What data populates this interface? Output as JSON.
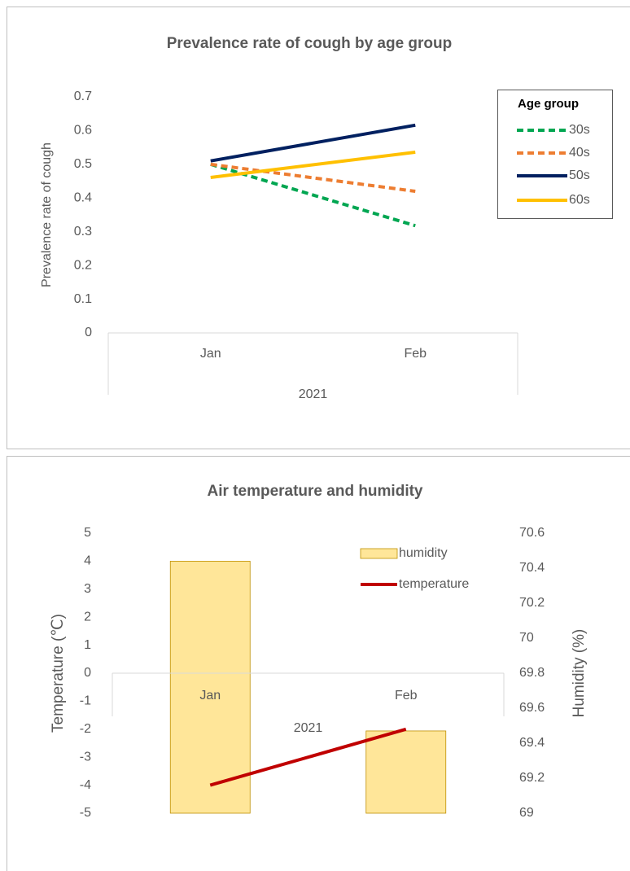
{
  "chart_data": [
    {
      "type": "line",
      "title": "Prevalence rate of cough by age group",
      "y_label": "Prevalence rate of cough",
      "categories": [
        "Jan",
        "Feb"
      ],
      "x_group_label": "2021",
      "ylim": [
        0,
        0.7
      ],
      "yticks": [
        0,
        0.1,
        0.2,
        0.3,
        0.4,
        0.5,
        0.6,
        0.7
      ],
      "legend_title": "Age group",
      "legend": "upper right",
      "series": [
        {
          "name": "30s",
          "color": "#00a651",
          "line_style": "dashed",
          "values": [
            0.5,
            0.318
          ]
        },
        {
          "name": "40s",
          "color": "#ed7d31",
          "line_style": "dashed",
          "values": [
            0.5,
            0.42
          ]
        },
        {
          "name": "50s",
          "color": "#002060",
          "line_style": "solid",
          "values": [
            0.51,
            0.616
          ]
        },
        {
          "name": "60s",
          "color": "#ffc000",
          "line_style": "solid",
          "values": [
            0.461,
            0.536
          ]
        }
      ]
    },
    {
      "type": "combo",
      "title": "Air temperature and humidity",
      "y_label": "Temperature (℃)",
      "y2_label": "Humidity (%)",
      "categories": [
        "Jan",
        "Feb"
      ],
      "x_group_label": "2021",
      "ylim": [
        -5,
        5
      ],
      "yticks": [
        -5,
        -4,
        -3,
        -2,
        -1,
        0,
        1,
        2,
        3,
        4,
        5
      ],
      "y2lim": [
        69,
        70.6
      ],
      "y2ticks": [
        69,
        69.2,
        69.4,
        69.6,
        69.8,
        70,
        70.2,
        70.4,
        70.6
      ],
      "legend": "upper right",
      "series": [
        {
          "name": "humidity",
          "type": "bar",
          "axis": "y2",
          "color": "#ffe699",
          "values": [
            70.44,
            69.47
          ]
        },
        {
          "name": "temperature",
          "type": "line",
          "color": "#c00000",
          "line_style": "solid",
          "values": [
            -4,
            -2
          ]
        }
      ]
    }
  ]
}
